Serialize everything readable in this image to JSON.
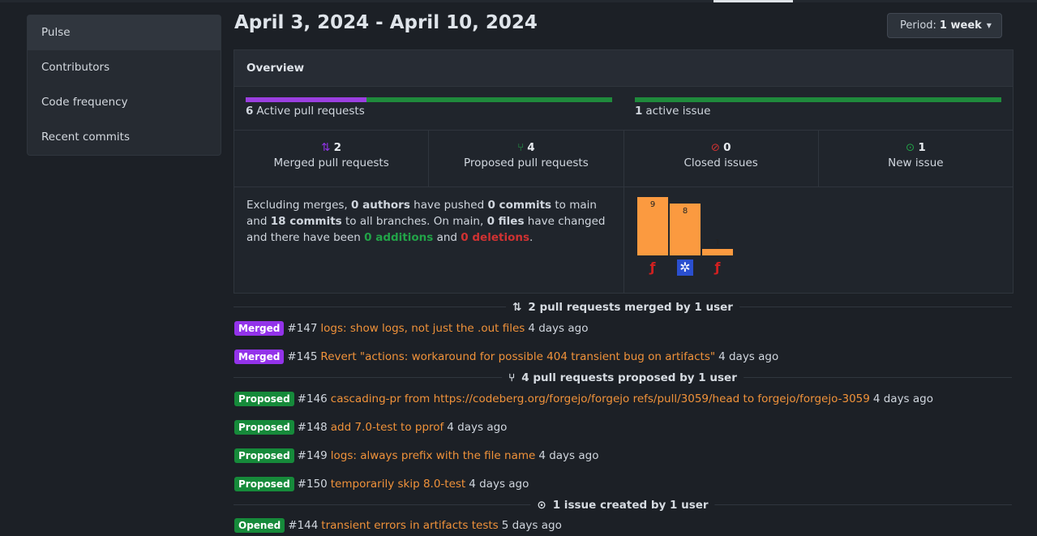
{
  "sidebar": {
    "items": [
      {
        "label": "Pulse",
        "active": true
      },
      {
        "label": "Contributors"
      },
      {
        "label": "Code frequency"
      },
      {
        "label": "Recent commits"
      }
    ]
  },
  "header": {
    "title": "April 3, 2024 - April 10, 2024",
    "period_label": "Period:",
    "period_value": "1 week"
  },
  "overview": {
    "title": "Overview",
    "active_prs": "6",
    "active_prs_label": "Active pull requests",
    "merged_fraction": 0.33,
    "active_issues": "1",
    "active_issues_label": "active issue",
    "stats": [
      {
        "icon": "git-merge-icon",
        "count": "2",
        "label": "Merged pull requests",
        "color": "#9333ea"
      },
      {
        "icon": "git-branch-icon",
        "count": "4",
        "label": "Proposed pull requests",
        "color": "#22a348"
      },
      {
        "icon": "issue-closed-icon",
        "count": "0",
        "label": "Closed issues",
        "color": "#d03232"
      },
      {
        "icon": "issue-opened-icon",
        "count": "1",
        "label": "New issue",
        "color": "#22a348"
      }
    ],
    "summary": {
      "p1": "Excluding merges, ",
      "authors": "0 authors",
      "p2": " have pushed ",
      "commits_main": "0 commits",
      "p3": " to main and ",
      "commits_all": "18 commits",
      "p4": " to all branches. On main, ",
      "files": "0 files",
      "p5": " have changed and there have been ",
      "additions": "0 additions",
      "p6": " and ",
      "deletions": "0 deletions",
      "p7": "."
    },
    "commit_chart": {
      "values": [
        "9",
        "8",
        "1"
      ],
      "max": 9,
      "bar_color": "#fb9a40",
      "avatars": [
        "forgejo-avatar",
        "identicon-avatar",
        "forgejo-avatar"
      ]
    }
  },
  "sections": {
    "merged": "2 pull requests merged by 1 user",
    "proposed": "4 pull requests proposed by 1 user",
    "issues": "1 issue created by 1 user"
  },
  "items": [
    {
      "badge": "Merged",
      "num": "#147",
      "title": "logs: show logs, not just the .out files",
      "time": "4 days ago"
    },
    {
      "badge": "Merged",
      "num": "#145",
      "title": "Revert \"actions: workaround for possible 404 transient bug on artifacts\"",
      "time": "4 days ago"
    },
    {
      "badge": "Proposed",
      "num": "#146",
      "title": "cascading-pr from https://codeberg.org/forgejo/forgejo refs/pull/3059/head to forgejo/forgejo-3059",
      "time": "4 days ago"
    },
    {
      "badge": "Proposed",
      "num": "#148",
      "title": "add 7.0-test to pprof",
      "time": "4 days ago"
    },
    {
      "badge": "Proposed",
      "num": "#149",
      "title": "logs: always prefix with the file name",
      "time": "4 days ago"
    },
    {
      "badge": "Proposed",
      "num": "#150",
      "title": "temporarily skip 8.0-test",
      "time": "4 days ago"
    },
    {
      "badge": "Opened",
      "num": "#144",
      "title": "transient errors in artifacts tests",
      "time": "5 days ago"
    }
  ]
}
